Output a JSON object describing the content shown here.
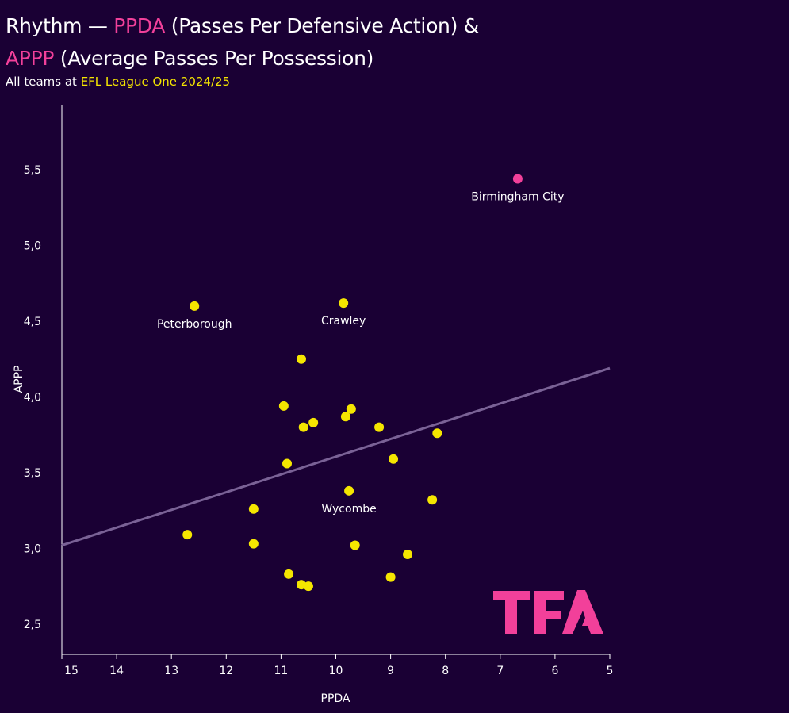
{
  "title": {
    "prefix": "Rhythm — ",
    "ppda": "PPDA",
    "ppda_rest": " (Passes Per Defensive Action) &",
    "appp": "APPP",
    "appp_rest": " (Average Passes Per Possession)"
  },
  "subtitle": {
    "prefix": "All teams at ",
    "league": "EFL League One 2024/25"
  },
  "logo": "TFA",
  "colors": {
    "background": "#1a0034",
    "highlight": "#f2409a",
    "points": "#f5e600",
    "trendline": "#7a6296"
  },
  "chart_data": {
    "type": "scatter",
    "xlabel": "PPDA",
    "ylabel": "APPP",
    "xlim": [
      15,
      5
    ],
    "x_reversed": true,
    "ylim": [
      2.3,
      5.93
    ],
    "xticks": [
      "15",
      "14",
      "13",
      "12",
      "11",
      "10",
      "9",
      "8",
      "7",
      "6",
      "5"
    ],
    "yticks": [
      "2,5",
      "3,0",
      "3,5",
      "4,0",
      "4,5",
      "5,0",
      "5,5"
    ],
    "grid": false,
    "trendline": {
      "x": [
        15,
        5
      ],
      "y": [
        3.02,
        4.19
      ]
    },
    "points": [
      {
        "x": 6.68,
        "y": 5.44,
        "label": "Birmingham City",
        "highlight": true
      },
      {
        "x": 12.58,
        "y": 4.6,
        "label": "Peterborough"
      },
      {
        "x": 9.86,
        "y": 4.62,
        "label": "Crawley"
      },
      {
        "x": 9.76,
        "y": 3.38,
        "label": "Wycombe"
      },
      {
        "x": 10.63,
        "y": 4.25
      },
      {
        "x": 10.95,
        "y": 3.94
      },
      {
        "x": 9.72,
        "y": 3.92
      },
      {
        "x": 9.82,
        "y": 3.87
      },
      {
        "x": 9.21,
        "y": 3.8
      },
      {
        "x": 10.59,
        "y": 3.8
      },
      {
        "x": 10.41,
        "y": 3.83
      },
      {
        "x": 8.15,
        "y": 3.76
      },
      {
        "x": 8.95,
        "y": 3.59
      },
      {
        "x": 10.89,
        "y": 3.56
      },
      {
        "x": 8.24,
        "y": 3.32
      },
      {
        "x": 11.5,
        "y": 3.26
      },
      {
        "x": 12.71,
        "y": 3.09
      },
      {
        "x": 11.5,
        "y": 3.03
      },
      {
        "x": 9.65,
        "y": 3.02
      },
      {
        "x": 8.69,
        "y": 2.96
      },
      {
        "x": 10.86,
        "y": 2.83
      },
      {
        "x": 9.0,
        "y": 2.81
      },
      {
        "x": 10.63,
        "y": 2.76
      },
      {
        "x": 10.5,
        "y": 2.75
      }
    ]
  }
}
